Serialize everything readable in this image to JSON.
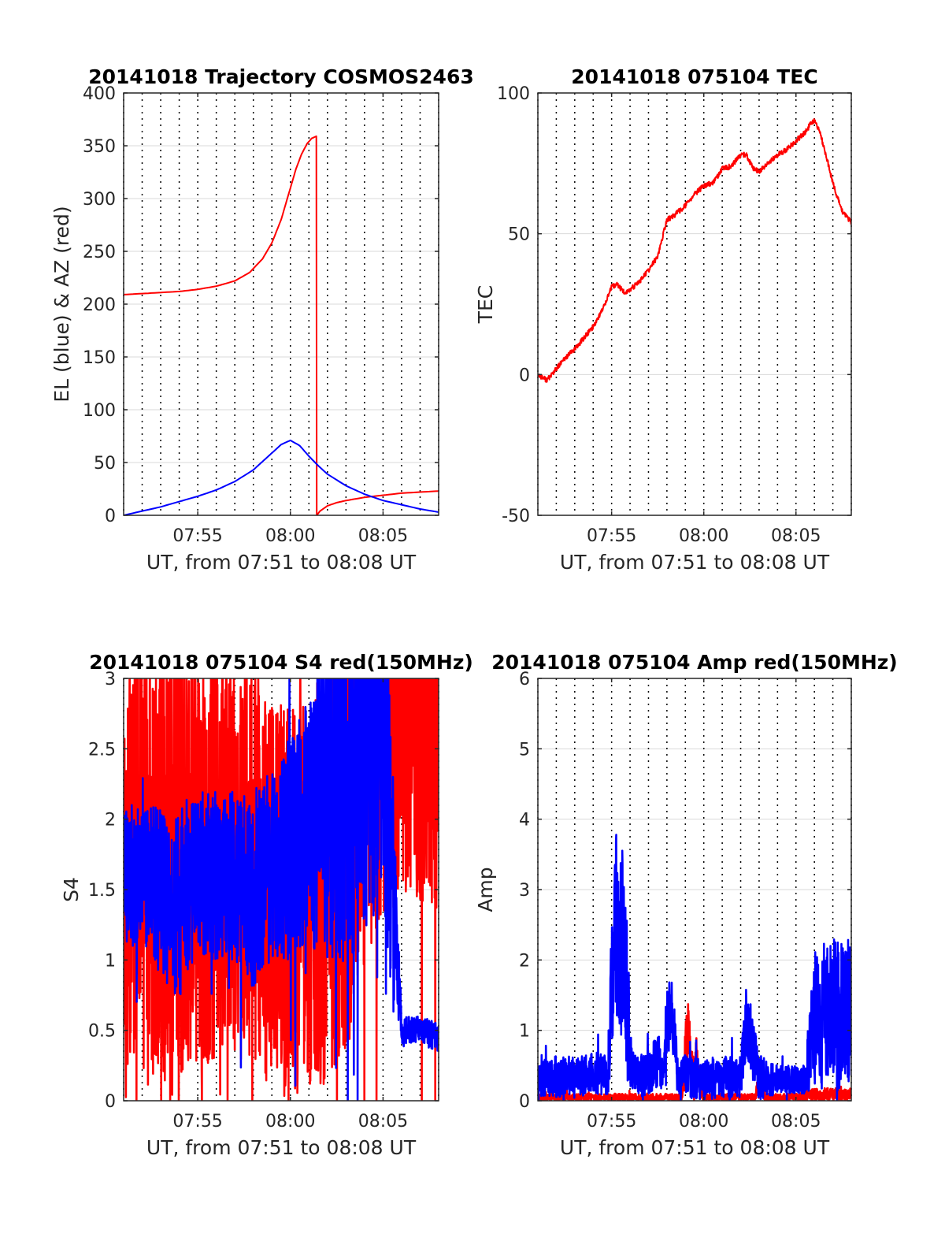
{
  "chart_data": [
    {
      "type": "line",
      "title": "20141018 Trajectory COSMOS2463",
      "xlabel": "UT, from 07:51 to 08:08 UT",
      "ylabel": "EL (blue) & AZ (red)",
      "xlim_min": [
        471,
        488
      ],
      "ylim": [
        0,
        400
      ],
      "xticks": [
        {
          "v": 475,
          "label": "07:55"
        },
        {
          "v": 480,
          "label": "08:00"
        },
        {
          "v": 485,
          "label": "08:05"
        }
      ],
      "yticks": [
        {
          "v": 0,
          "label": "0"
        },
        {
          "v": 50,
          "label": "50"
        },
        {
          "v": 100,
          "label": "100"
        },
        {
          "v": 150,
          "label": "150"
        },
        {
          "v": 200,
          "label": "200"
        },
        {
          "v": 250,
          "label": "250"
        },
        {
          "v": 300,
          "label": "300"
        },
        {
          "v": 350,
          "label": "350"
        },
        {
          "v": 400,
          "label": "400"
        }
      ],
      "grid": true,
      "series": [
        {
          "color": "#ff0000",
          "x": [
            471.0,
            472.0,
            473.0,
            474.0,
            475.0,
            476.0,
            477.0,
            477.8,
            478.5,
            479.0,
            479.5,
            480.0,
            480.3,
            480.6,
            480.9,
            481.15,
            481.4,
            481.42,
            481.6,
            482.0,
            482.5,
            483.0,
            484.0,
            485.0,
            486.0,
            487.0,
            488.0
          ],
          "y": [
            209,
            210,
            211,
            212,
            214,
            217,
            222,
            230,
            243,
            258,
            280,
            310,
            328,
            342,
            352,
            357,
            359,
            0,
            4,
            9,
            12,
            14,
            17,
            19,
            21,
            22,
            23
          ]
        },
        {
          "color": "#0000ff",
          "x": [
            471.0,
            472.0,
            473.0,
            474.0,
            475.0,
            476.0,
            477.0,
            478.0,
            478.5,
            479.0,
            479.5,
            480.0,
            480.5,
            481.0,
            481.5,
            482.0,
            483.0,
            484.0,
            485.0,
            486.0,
            487.0,
            488.0
          ],
          "y": [
            0,
            4,
            8,
            13,
            18,
            24,
            32,
            43,
            51,
            59,
            67,
            71,
            66,
            56,
            47,
            39,
            28,
            20,
            14,
            10,
            6,
            3
          ]
        }
      ]
    },
    {
      "type": "line",
      "title": "20141018 075104 TEC",
      "xlabel": "UT, from 07:51 to 08:08 UT",
      "ylabel": "TEC",
      "xlim_min": [
        471,
        488
      ],
      "ylim": [
        -50,
        100
      ],
      "xticks": [
        {
          "v": 475,
          "label": "07:55"
        },
        {
          "v": 480,
          "label": "08:00"
        },
        {
          "v": 485,
          "label": "08:05"
        }
      ],
      "yticks": [
        {
          "v": -50,
          "label": "-50"
        },
        {
          "v": 0,
          "label": "0"
        },
        {
          "v": 50,
          "label": "50"
        },
        {
          "v": 100,
          "label": "100"
        }
      ],
      "grid": true,
      "series": [
        {
          "color": "#ff0000",
          "x": [
            471.0,
            471.5,
            472.0,
            472.5,
            473.0,
            473.5,
            474.0,
            474.5,
            475.0,
            475.3,
            475.7,
            476.0,
            476.5,
            477.0,
            477.5,
            478.0,
            478.3,
            479.0,
            479.5,
            480.0,
            480.5,
            481.0,
            481.5,
            482.0,
            482.3,
            482.7,
            483.0,
            483.5,
            484.0,
            484.5,
            485.0,
            485.5,
            485.8,
            486.0,
            486.3,
            486.7,
            487.0,
            487.5,
            488.0
          ],
          "y": [
            0,
            -2,
            2,
            6,
            9,
            13,
            17,
            23,
            31,
            32,
            29,
            30,
            33,
            37,
            42,
            55,
            56,
            60,
            64,
            67,
            68,
            73,
            74,
            78,
            78,
            73,
            72,
            75,
            78,
            80,
            83,
            86,
            89,
            90,
            86,
            76,
            68,
            58,
            54
          ]
        }
      ]
    },
    {
      "type": "line",
      "title": "20141018 075104 S4 red(150MHz)",
      "xlabel": "UT, from 07:51 to 08:08 UT",
      "ylabel": "S4",
      "xlim_min": [
        471,
        488
      ],
      "ylim": [
        0,
        3
      ],
      "xticks": [
        {
          "v": 475,
          "label": "07:55"
        },
        {
          "v": 480,
          "label": "08:00"
        },
        {
          "v": 485,
          "label": "08:05"
        }
      ],
      "yticks": [
        {
          "v": 0,
          "label": "0"
        },
        {
          "v": 0.5,
          "label": "0.5"
        },
        {
          "v": 1,
          "label": "1"
        },
        {
          "v": 1.5,
          "label": "1.5"
        },
        {
          "v": 2,
          "label": "2"
        },
        {
          "v": 2.5,
          "label": "2.5"
        },
        {
          "v": 3,
          "label": "3"
        }
      ],
      "grid": true,
      "series": [
        {
          "color": "#ff0000",
          "noise": true,
          "profile": {
            "x": [
              471,
              472,
              473,
              474,
              475,
              476,
              477,
              478,
              479,
              480,
              481,
              482,
              483,
              484,
              485,
              486,
              487,
              488
            ],
            "base": [
              1.6,
              1.7,
              1.7,
              1.8,
              1.7,
              1.8,
              1.6,
              1.7,
              1.5,
              1.4,
              1.5,
              1.6,
              1.8,
              2.5,
              2.8,
              2.8,
              2.8,
              2.8
            ],
            "amp": [
              1.3,
              1.6,
              1.6,
              1.6,
              1.5,
              1.6,
              1.4,
              1.5,
              1.4,
              1.4,
              1.4,
              1.5,
              1.5,
              1.5,
              1.5,
              1.5,
              1.5,
              1.5
            ]
          }
        },
        {
          "color": "#0000ff",
          "noise": true,
          "profile": {
            "x": [
              471,
              472,
              473,
              474,
              475,
              476,
              477,
              478,
              479,
              480,
              481,
              482,
              483,
              484,
              485,
              486,
              486.5,
              487,
              488
            ],
            "base": [
              1.6,
              1.6,
              1.5,
              1.4,
              1.6,
              1.6,
              1.6,
              1.5,
              1.7,
              1.8,
              2.0,
              2.2,
              2.4,
              2.8,
              2.8,
              0.5,
              0.5,
              0.5,
              0.45
            ],
            "amp": [
              0.5,
              0.5,
              0.6,
              0.7,
              0.6,
              0.6,
              0.6,
              0.7,
              0.7,
              0.8,
              0.9,
              1.2,
              1.5,
              1.6,
              1.6,
              0.12,
              0.1,
              0.1,
              0.1
            ]
          }
        }
      ]
    },
    {
      "type": "line",
      "title": "20141018 075104 Amp red(150MHz)",
      "xlabel": "UT, from 07:51 to 08:08 UT",
      "ylabel": "Amp",
      "xlim_min": [
        471,
        488
      ],
      "ylim": [
        0,
        6
      ],
      "xticks": [
        {
          "v": 475,
          "label": "07:55"
        },
        {
          "v": 480,
          "label": "08:00"
        },
        {
          "v": 485,
          "label": "08:05"
        }
      ],
      "yticks": [
        {
          "v": 0,
          "label": "0"
        },
        {
          "v": 1,
          "label": "1"
        },
        {
          "v": 2,
          "label": "2"
        },
        {
          "v": 3,
          "label": "3"
        },
        {
          "v": 4,
          "label": "4"
        },
        {
          "v": 5,
          "label": "5"
        },
        {
          "v": 6,
          "label": "6"
        }
      ],
      "grid": true,
      "series": [
        {
          "color": "#ff0000",
          "noise": true,
          "profile": {
            "x": [
              471,
              478.8,
              479.0,
              479.2,
              479.4,
              479.6,
              480.0,
              482.8,
              483.0,
              483.3,
              485.0,
              486.0,
              488.0
            ],
            "base": [
              0.05,
              0.05,
              0.7,
              1.1,
              0.3,
              0.5,
              0.05,
              0.05,
              0.4,
              0.05,
              0.05,
              0.08,
              0.08
            ],
            "amp": [
              0.05,
              0.05,
              0.6,
              0.5,
              0.3,
              0.4,
              0.05,
              0.05,
              0.2,
              0.05,
              0.05,
              0.1,
              0.1
            ]
          }
        },
        {
          "color": "#0000ff",
          "noise": true,
          "profile": {
            "x": [
              471,
              472,
              473,
              474,
              474.8,
              475.0,
              475.3,
              475.6,
              475.9,
              476.1,
              476.5,
              477.0,
              477.5,
              477.8,
              478.0,
              478.3,
              478.6,
              479.0,
              480.0,
              481.0,
              482.0,
              482.3,
              482.6,
              483.0,
              484.0,
              485.0,
              485.5,
              486.0,
              487.0,
              488.0
            ],
            "base": [
              0.35,
              0.35,
              0.35,
              0.4,
              0.35,
              1.8,
              2.6,
              2.3,
              1.2,
              0.4,
              0.35,
              0.4,
              0.6,
              0.4,
              1.1,
              1.2,
              0.3,
              0.35,
              0.3,
              0.35,
              0.35,
              1.1,
              0.9,
              0.3,
              0.3,
              0.3,
              0.3,
              1.2,
              1.2,
              1.2
            ],
            "amp": [
              0.3,
              0.3,
              0.3,
              0.3,
              0.3,
              1.2,
              1.5,
              1.5,
              1.0,
              0.3,
              0.3,
              0.3,
              0.4,
              0.3,
              0.6,
              0.5,
              0.3,
              0.3,
              0.3,
              0.3,
              0.3,
              0.5,
              0.5,
              0.3,
              0.2,
              0.2,
              0.2,
              1.0,
              1.1,
              1.1
            ]
          }
        }
      ]
    }
  ]
}
